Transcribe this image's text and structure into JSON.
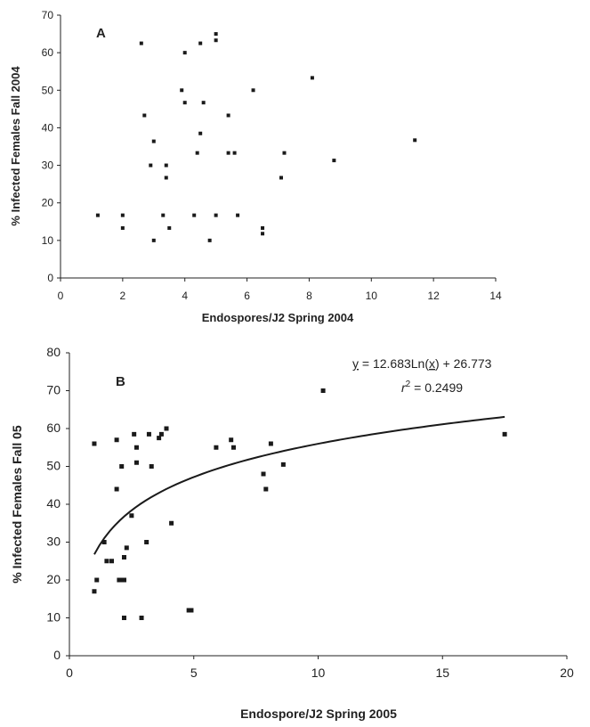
{
  "chart_data": [
    {
      "type": "scatter",
      "panel_label": "A",
      "xlabel": "Endospores/J2 Spring 2004",
      "ylabel": "% Infected Females Fall 2004",
      "xlim": [
        0,
        14
      ],
      "ylim": [
        0,
        70
      ],
      "xticks": [
        "0",
        "2",
        "4",
        "6",
        "8",
        "10",
        "12",
        "14"
      ],
      "yticks": [
        "0",
        "10",
        "20",
        "30",
        "40",
        "50",
        "60",
        "70"
      ],
      "grid": false,
      "marker_color": "#1a1a1a",
      "points": [
        {
          "x": 1.2,
          "y": 16.7
        },
        {
          "x": 2.0,
          "y": 16.7
        },
        {
          "x": 2.0,
          "y": 13.3
        },
        {
          "x": 2.6,
          "y": 62.5
        },
        {
          "x": 2.7,
          "y": 43.3
        },
        {
          "x": 2.9,
          "y": 30.0
        },
        {
          "x": 3.0,
          "y": 36.4
        },
        {
          "x": 3.0,
          "y": 10.0
        },
        {
          "x": 3.3,
          "y": 16.7
        },
        {
          "x": 3.4,
          "y": 30.0
        },
        {
          "x": 3.4,
          "y": 26.7
        },
        {
          "x": 3.5,
          "y": 13.3
        },
        {
          "x": 3.9,
          "y": 50.0
        },
        {
          "x": 4.0,
          "y": 46.7
        },
        {
          "x": 4.0,
          "y": 60.0
        },
        {
          "x": 4.3,
          "y": 16.7
        },
        {
          "x": 4.4,
          "y": 33.3
        },
        {
          "x": 4.5,
          "y": 62.5
        },
        {
          "x": 4.5,
          "y": 38.5
        },
        {
          "x": 4.6,
          "y": 46.7
        },
        {
          "x": 4.8,
          "y": 10.0
        },
        {
          "x": 5.0,
          "y": 65.0
        },
        {
          "x": 5.0,
          "y": 63.3
        },
        {
          "x": 5.0,
          "y": 16.7
        },
        {
          "x": 5.4,
          "y": 43.3
        },
        {
          "x": 5.4,
          "y": 33.3
        },
        {
          "x": 5.6,
          "y": 33.3
        },
        {
          "x": 5.7,
          "y": 16.7
        },
        {
          "x": 6.2,
          "y": 50.0
        },
        {
          "x": 6.5,
          "y": 13.3
        },
        {
          "x": 6.5,
          "y": 11.8
        },
        {
          "x": 7.1,
          "y": 26.7
        },
        {
          "x": 7.2,
          "y": 33.3
        },
        {
          "x": 8.1,
          "y": 53.3
        },
        {
          "x": 8.8,
          "y": 31.3
        },
        {
          "x": 11.4,
          "y": 36.7
        }
      ]
    },
    {
      "type": "scatter",
      "panel_label": "B",
      "xlabel": "Endospore/J2 Spring 2005",
      "ylabel": "% Infected Females Fall 05",
      "xlim": [
        0,
        20
      ],
      "ylim": [
        0,
        80
      ],
      "xticks": [
        "0",
        "5",
        "10",
        "15",
        "20"
      ],
      "yticks": [
        "0",
        "10",
        "20",
        "30",
        "40",
        "50",
        "60",
        "70",
        "80"
      ],
      "grid": false,
      "marker_color": "#1a1a1a",
      "equation_text": {
        "y_part": "y",
        "middle": " = 12.683Ln(",
        "x_part": "x",
        "end": ") + 26.773"
      },
      "r2_text": {
        "r": "r",
        "sup": "2",
        "value": " = 0.2499"
      },
      "trendline": {
        "type": "logarithmic",
        "a": 12.683,
        "b": 26.773,
        "x_range": [
          1.0,
          17.5
        ]
      },
      "points": [
        {
          "x": 1.0,
          "y": 56.0
        },
        {
          "x": 1.0,
          "y": 17.0
        },
        {
          "x": 1.1,
          "y": 20.0
        },
        {
          "x": 1.4,
          "y": 30.0
        },
        {
          "x": 1.5,
          "y": 25.0
        },
        {
          "x": 1.7,
          "y": 25.0
        },
        {
          "x": 1.9,
          "y": 57.0
        },
        {
          "x": 1.9,
          "y": 44.0
        },
        {
          "x": 2.0,
          "y": 20.0
        },
        {
          "x": 2.1,
          "y": 50.0
        },
        {
          "x": 2.1,
          "y": 20.0
        },
        {
          "x": 2.2,
          "y": 26.0
        },
        {
          "x": 2.2,
          "y": 20.0
        },
        {
          "x": 2.2,
          "y": 10.0
        },
        {
          "x": 2.3,
          "y": 28.5
        },
        {
          "x": 2.5,
          "y": 37.0
        },
        {
          "x": 2.6,
          "y": 58.5
        },
        {
          "x": 2.7,
          "y": 55.0
        },
        {
          "x": 2.7,
          "y": 51.0
        },
        {
          "x": 2.9,
          "y": 10.0
        },
        {
          "x": 3.1,
          "y": 30.0
        },
        {
          "x": 3.2,
          "y": 58.5
        },
        {
          "x": 3.3,
          "y": 50.0
        },
        {
          "x": 3.6,
          "y": 57.5
        },
        {
          "x": 3.7,
          "y": 58.5
        },
        {
          "x": 3.9,
          "y": 60.0
        },
        {
          "x": 4.1,
          "y": 35.0
        },
        {
          "x": 4.8,
          "y": 12.0
        },
        {
          "x": 4.9,
          "y": 12.0
        },
        {
          "x": 5.9,
          "y": 55.0
        },
        {
          "x": 6.5,
          "y": 57.0
        },
        {
          "x": 6.6,
          "y": 55.0
        },
        {
          "x": 7.8,
          "y": 48.0
        },
        {
          "x": 7.9,
          "y": 44.0
        },
        {
          "x": 8.1,
          "y": 56.0
        },
        {
          "x": 8.6,
          "y": 50.5
        },
        {
          "x": 10.2,
          "y": 70.0
        },
        {
          "x": 17.5,
          "y": 58.5
        }
      ]
    }
  ]
}
